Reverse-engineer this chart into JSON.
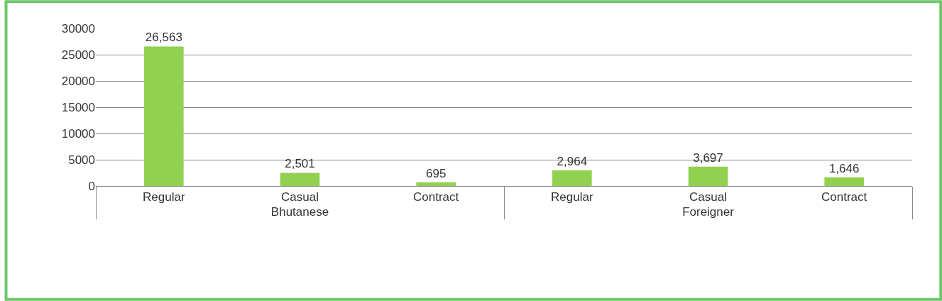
{
  "chart_data": {
    "type": "bar",
    "categories": [
      "Regular",
      "Casual",
      "Contract",
      "Regular",
      "Casual",
      "Contract"
    ],
    "annotations": [
      "Bhutanese",
      "Foreigner"
    ],
    "values": [
      26563,
      2501,
      695,
      2964,
      3697,
      1646
    ],
    "value_labels": [
      "26,563",
      "2,501",
      "695",
      "2,964",
      "3,697",
      "1,646"
    ],
    "color": "#92d050",
    "ylim": [
      0,
      30000
    ],
    "yticks": [
      0,
      5000,
      10000,
      15000,
      20000,
      25000,
      30000
    ],
    "grid": "y",
    "legend": false
  }
}
